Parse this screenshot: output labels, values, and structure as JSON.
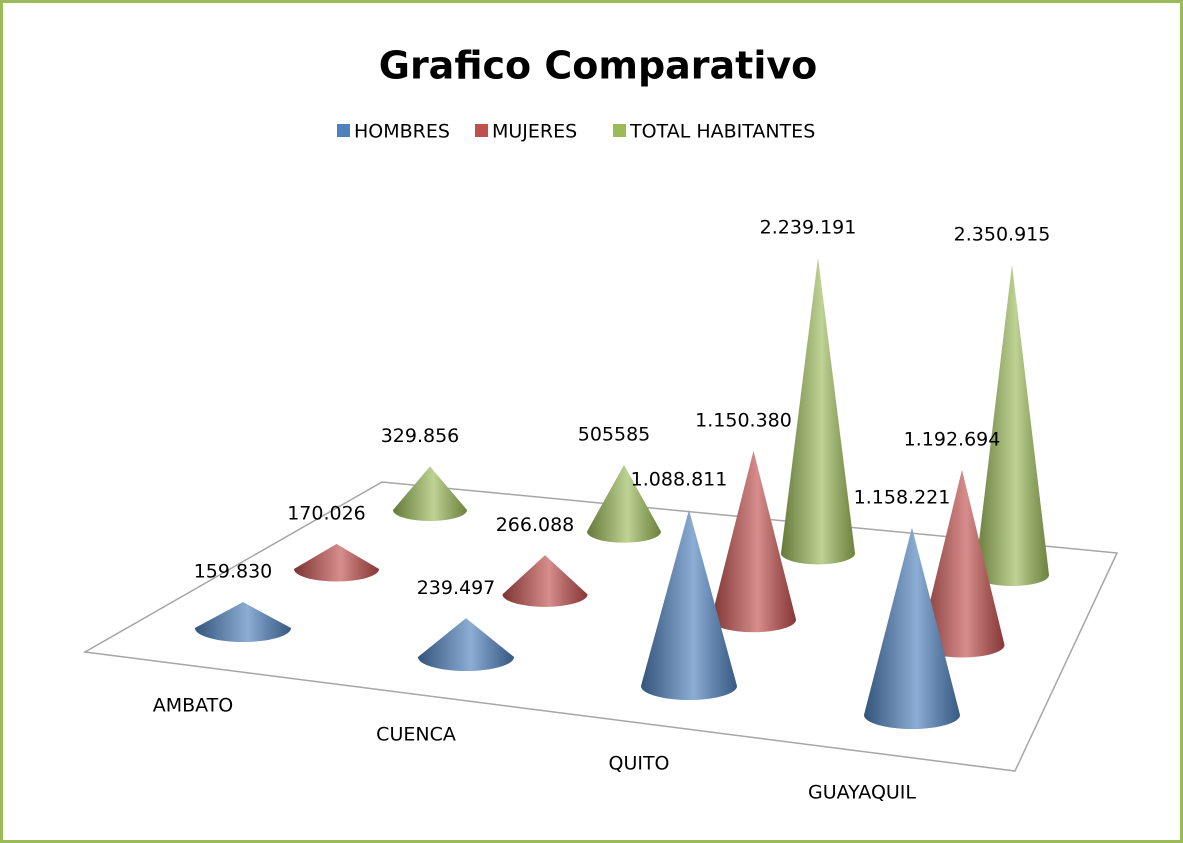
{
  "chart_data": {
    "type": "cone",
    "title": "Grafico Comparativo",
    "categories": [
      "AMBATO",
      "CUENCA",
      "QUITO",
      "GUAYAQUIL"
    ],
    "series": [
      {
        "name": "HOMBRES",
        "color": "#4f81bd",
        "values": [
          159830,
          239497,
          1088811,
          1158221
        ],
        "value_labels": [
          "159.830",
          "239.497",
          "1.088.811",
          "1.158.221"
        ]
      },
      {
        "name": "MUJERES",
        "color": "#c0504d",
        "values": [
          170026,
          266088,
          1150380,
          1192694
        ],
        "value_labels": [
          "170.026",
          "266.088",
          "1.150.380",
          "1.192.694"
        ]
      },
      {
        "name": "TOTAL HABITANTES",
        "color": "#9bbb59",
        "values": [
          329856,
          505585,
          2239191,
          2350915
        ],
        "value_labels": [
          "329.856",
          "505585",
          "2.239.191",
          "2.350.915"
        ]
      }
    ],
    "legend": "top"
  }
}
